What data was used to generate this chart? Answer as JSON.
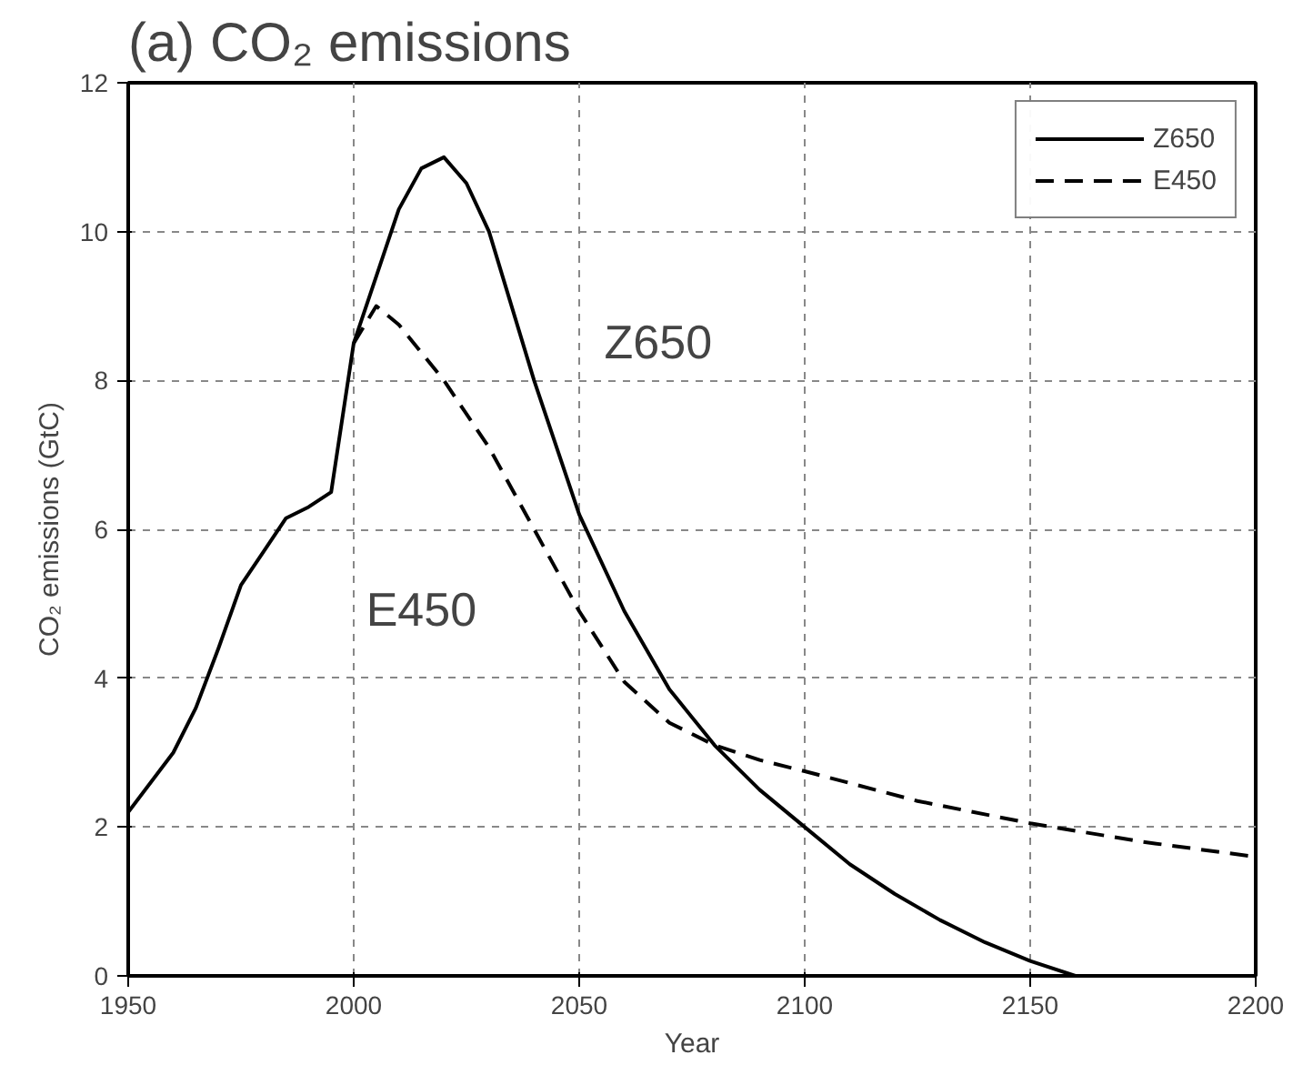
{
  "chart_data": {
    "type": "line",
    "title": "(a) CO₂ emissions",
    "xlabel": "Year",
    "ylabel": "CO₂ emissions (GtC)",
    "xlim": [
      1950,
      2200
    ],
    "ylim": [
      0,
      12
    ],
    "xticks": [
      1950,
      2000,
      2050,
      2100,
      2150,
      2200
    ],
    "yticks": [
      0,
      2,
      4,
      6,
      8,
      10,
      12
    ],
    "grid": true,
    "legend": "top right",
    "series": [
      {
        "name": "Z650",
        "color": "#000000",
        "line_style": "solid",
        "x": [
          1950,
          1960,
          1965,
          1970,
          1975,
          1980,
          1985,
          1990,
          1995,
          2000,
          2005,
          2010,
          2015,
          2020,
          2025,
          2030,
          2040,
          2050,
          2060,
          2070,
          2080,
          2090,
          2100,
          2110,
          2120,
          2130,
          2140,
          2150,
          2160
        ],
        "values": [
          2.2,
          3.0,
          3.6,
          4.4,
          5.25,
          5.7,
          6.15,
          6.3,
          6.5,
          8.5,
          9.4,
          10.3,
          10.85,
          11.0,
          10.65,
          10.0,
          8.0,
          6.2,
          4.9,
          3.85,
          3.1,
          2.5,
          2.0,
          1.5,
          1.1,
          0.75,
          0.45,
          0.2,
          0.0
        ]
      },
      {
        "name": "E450",
        "color": "#000000",
        "line_style": "dashed",
        "x": [
          2000,
          2005,
          2010,
          2020,
          2030,
          2040,
          2050,
          2060,
          2070,
          2080,
          2090,
          2100,
          2125,
          2150,
          2175,
          2200
        ],
        "values": [
          8.5,
          9.0,
          8.75,
          8.0,
          7.1,
          6.0,
          4.9,
          3.95,
          3.4,
          3.1,
          2.9,
          2.75,
          2.35,
          2.05,
          1.8,
          1.6
        ]
      }
    ],
    "annotations": [
      "Z650",
      "E450"
    ]
  }
}
